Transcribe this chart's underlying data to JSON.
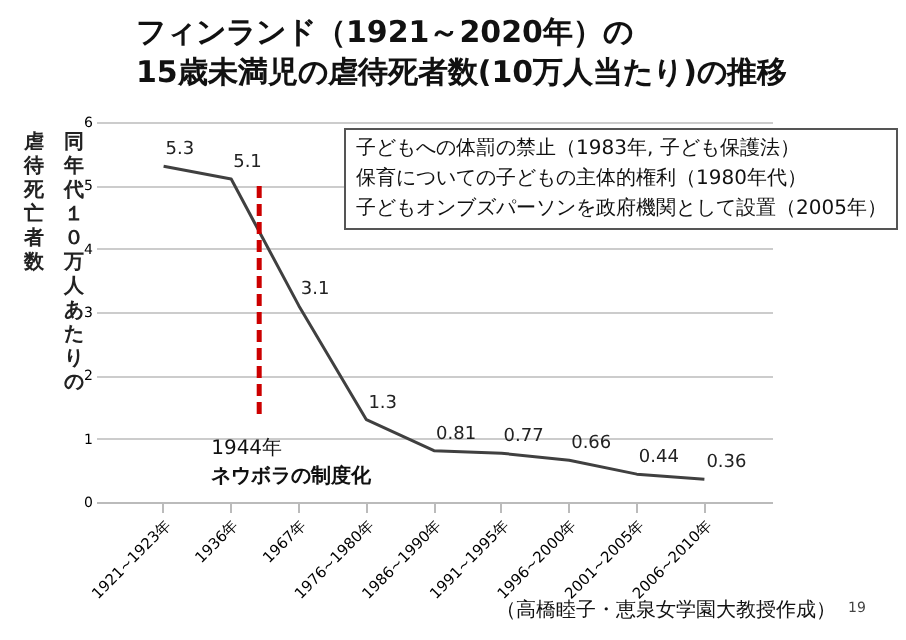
{
  "chart_data": {
    "type": "line",
    "title": "フィンランド（1921～2020年）の\n15歳未満児の虐待死者数(10万人当たり)の推移",
    "ylabel": "同年代１０万人あたりの虐待死亡者数",
    "categories": [
      "1921~1923年",
      "1936年",
      "1967年",
      "1976~1980年",
      "1986~1990年",
      "1991~1995年",
      "1996~2000年",
      "2001~2005年",
      "2006~2010年"
    ],
    "series": [
      {
        "color": "#404040",
        "values": [
          5.3,
          5.1,
          3.1,
          1.3,
          0.81,
          0.77,
          0.66,
          0.44,
          0.36
        ]
      }
    ],
    "ylim": [
      0,
      6
    ],
    "yticks": [
      0,
      1,
      2,
      3,
      4,
      5,
      6
    ],
    "grid": "y",
    "marker": "none",
    "line_style": "solid",
    "data_labels": true,
    "ref_lines": [
      {
        "axis": "x",
        "value": "1936年",
        "label": "1944年",
        "color": "#cc0000",
        "line_style": "dashed"
      }
    ],
    "annotations": [
      "子どもへの体罰の禁止（1983年, 子ども保護法）",
      "保育についての子どもの主体的権利（1980年代）",
      "子どもオンブズパーソンを政府機関として設置（2005年）",
      "（高橋睦子・恵泉女学園大教授作成）",
      "19",
      "ネウボラの制度化"
    ]
  }
}
